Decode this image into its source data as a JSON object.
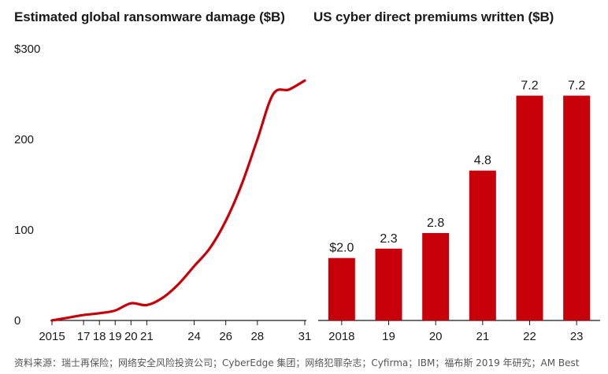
{
  "colors": {
    "accent": "#c8000a",
    "axis": "#1a1a1a",
    "text": "#1a1a1a"
  },
  "source": "资料来源：瑞士再保险；网络安全风险投资公司；CyberEdge 集团；网络犯罪杂志；Cyfirma；IBM；福布斯 2019 年研究；AM Best",
  "chart_data": [
    {
      "type": "line",
      "title": "Estimated global ransomware damage ($B)",
      "xlabel": "",
      "ylabel": "",
      "x": [
        2015,
        2016,
        2017,
        2018,
        2019,
        2020,
        2021,
        2022,
        2023,
        2024,
        2025,
        2026,
        2027,
        2028,
        2029,
        2030,
        2031
      ],
      "series": [
        {
          "name": "Ransomware damage",
          "values": [
            0,
            3,
            6,
            8,
            11,
            19,
            17,
            25,
            40,
            60,
            80,
            110,
            150,
            200,
            250,
            255,
            265
          ]
        }
      ],
      "xticks": [
        2015,
        2017,
        2018,
        2019,
        2020,
        2021,
        2024,
        2026,
        2028,
        2031
      ],
      "xtick_labels": [
        "2015",
        "17",
        "18",
        "19",
        "20",
        "21",
        "24",
        "26",
        "28",
        "31"
      ],
      "yticks": [
        0,
        100,
        200,
        300
      ],
      "ytick_labels": [
        "0",
        "100",
        "200",
        "$300"
      ],
      "ylim": [
        0,
        300
      ],
      "grid": false
    },
    {
      "type": "bar",
      "title": "US cyber direct premiums written ($B)",
      "xlabel": "",
      "ylabel": "",
      "categories": [
        "2018",
        "19",
        "20",
        "21",
        "22",
        "23"
      ],
      "values": [
        2.0,
        2.3,
        2.8,
        4.8,
        7.2,
        7.2
      ],
      "value_labels": [
        "$2.0",
        "2.3",
        "2.8",
        "4.8",
        "7.2",
        "7.2"
      ],
      "ylim": [
        0,
        8.7
      ],
      "grid": false
    }
  ]
}
